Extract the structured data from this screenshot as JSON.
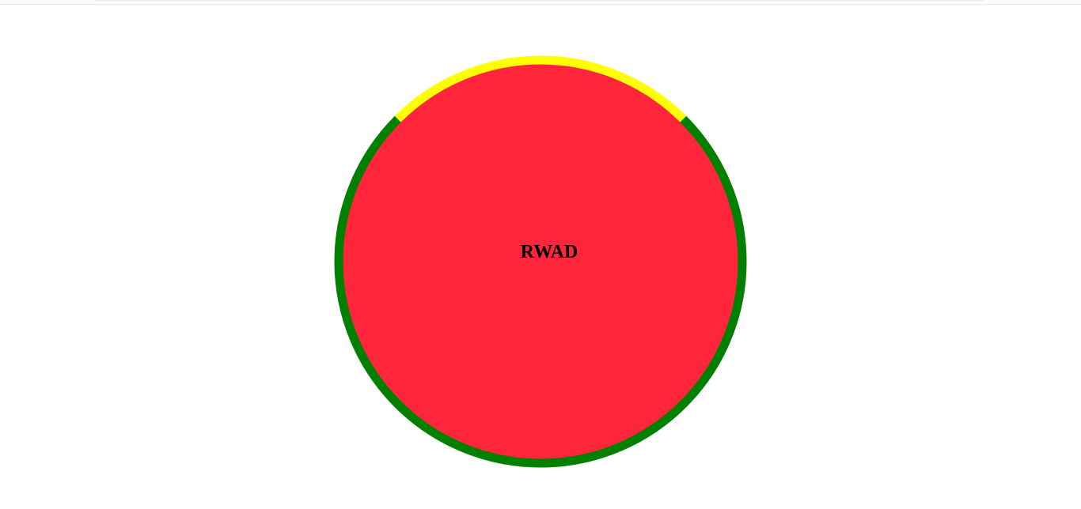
{
  "page": {
    "background": "#ffffff"
  },
  "gauge": {
    "label": "RWAD",
    "fill_color": "#ff263b",
    "segments": [
      {
        "color": "#ffff00",
        "fraction": 0.25
      },
      {
        "color": "#008000",
        "fraction": 0.75
      }
    ]
  }
}
